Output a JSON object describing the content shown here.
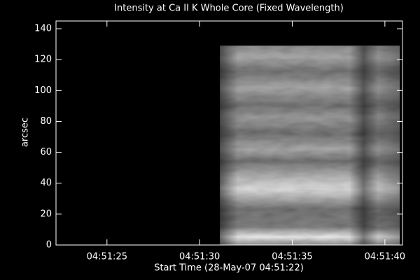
{
  "chart_data": {
    "type": "image",
    "title": "Intensity at Ca II K Whole Core (Fixed Wavelength)",
    "xlabel": "Start Time (28-May-07 04:51:22)",
    "ylabel": "arcsec",
    "xlim": [
      0.25,
      18.95
    ],
    "xticks": [
      {
        "value": 3,
        "label": "04:51:25"
      },
      {
        "value": 8,
        "label": "04:51:30"
      },
      {
        "value": 13,
        "label": "04:51:35"
      },
      {
        "value": 18,
        "label": "04:51:40"
      }
    ],
    "ylim": [
      0,
      145
    ],
    "yticks": [
      0,
      20,
      40,
      60,
      80,
      100,
      120,
      140
    ],
    "extent": {
      "x": [
        9.1,
        18.8
      ],
      "y": [
        0,
        129
      ]
    },
    "colormap": "gray"
  }
}
